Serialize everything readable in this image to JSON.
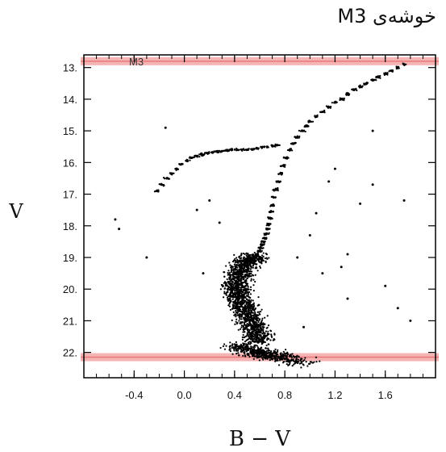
{
  "chart_data": {
    "type": "scatter",
    "title": "خوشه‌ی M3",
    "cluster_label": "M3",
    "xlabel": "B − V",
    "ylabel": "V",
    "xlim": [
      -0.8,
      2.0
    ],
    "ylim": [
      22.8,
      12.6
    ],
    "y_inverted": true,
    "grid": false,
    "x_ticks": [
      -0.4,
      0.0,
      0.4,
      0.8,
      1.2,
      1.6
    ],
    "x_tick_labels": [
      "-0.4",
      "0.0",
      "0.4",
      "0.8",
      "1.2",
      "1.6"
    ],
    "y_ticks": [
      13,
      14,
      15,
      16,
      17,
      18,
      19,
      20,
      21,
      22
    ],
    "y_tick_labels": [
      "13.",
      "14.",
      "15.",
      "16.",
      "17.",
      "18.",
      "19.",
      "20.",
      "21.",
      "22."
    ],
    "highlight_bands": [
      {
        "v": 12.8,
        "color": "#f3a6a6"
      },
      {
        "v": 22.15,
        "color": "#f3a6a6"
      }
    ],
    "point_color": "#000000",
    "series": [
      {
        "sequence": "red-giant-branch",
        "x": [
          1.75,
          1.7,
          1.65,
          1.6,
          1.55,
          1.5,
          1.45,
          1.4,
          1.35,
          1.3,
          1.25,
          1.2,
          1.15,
          1.1,
          1.05,
          1.0,
          0.97,
          0.94,
          0.9,
          0.87,
          0.84,
          0.81,
          0.79,
          0.77,
          0.75,
          0.73,
          0.71,
          0.7,
          0.69,
          0.68,
          0.67,
          0.66,
          0.65,
          0.64,
          0.63,
          0.62,
          0.61,
          0.6,
          0.58,
          0.56
        ],
        "y": [
          12.9,
          13.0,
          13.1,
          13.2,
          13.3,
          13.4,
          13.5,
          13.6,
          13.7,
          13.85,
          14.0,
          14.1,
          14.25,
          14.4,
          14.55,
          14.7,
          14.85,
          15.0,
          15.2,
          15.4,
          15.6,
          15.85,
          16.1,
          16.35,
          16.6,
          16.85,
          17.1,
          17.35,
          17.55,
          17.75,
          17.95,
          18.1,
          18.25,
          18.4,
          18.5,
          18.6,
          18.7,
          18.8,
          18.9,
          19.0
        ]
      },
      {
        "sequence": "horizontal-branch",
        "x": [
          -0.22,
          -0.18,
          -0.14,
          -0.1,
          -0.06,
          -0.02,
          0.02,
          0.06,
          0.1,
          0.14,
          0.18,
          0.22,
          0.26,
          0.3,
          0.34,
          0.38,
          0.42,
          0.46,
          0.5,
          0.54,
          0.58,
          0.62,
          0.66,
          0.7,
          0.74
        ],
        "y": [
          16.9,
          16.7,
          16.5,
          16.35,
          16.2,
          16.05,
          15.95,
          15.85,
          15.8,
          15.75,
          15.7,
          15.68,
          15.66,
          15.64,
          15.62,
          15.6,
          15.6,
          15.6,
          15.6,
          15.58,
          15.55,
          15.52,
          15.5,
          15.48,
          15.45
        ]
      },
      {
        "sequence": "subgiant-turnoff",
        "x": [
          0.56,
          0.52,
          0.48,
          0.45,
          0.43,
          0.42,
          0.42,
          0.43,
          0.45,
          0.48,
          0.5,
          0.52,
          0.55,
          0.58,
          0.6
        ],
        "y": [
          19.0,
          19.1,
          19.25,
          19.4,
          19.6,
          19.8,
          20.0,
          20.2,
          20.4,
          20.6,
          20.8,
          21.0,
          21.2,
          21.4,
          21.6
        ]
      },
      {
        "sequence": "main-sequence-bottom",
        "x": [
          0.45,
          0.5,
          0.55,
          0.6,
          0.65,
          0.7,
          0.75,
          0.8,
          0.9
        ],
        "y": [
          21.8,
          21.9,
          21.95,
          22.0,
          22.05,
          22.1,
          22.15,
          22.2,
          22.3
        ]
      },
      {
        "sequence": "field-stars",
        "x": [
          -0.55,
          -0.52,
          -0.3,
          -0.15,
          0.1,
          0.15,
          0.2,
          0.28,
          0.9,
          1.0,
          1.1,
          1.2,
          1.3,
          1.4,
          1.5,
          1.6,
          1.7,
          1.75,
          1.8,
          1.5,
          1.3,
          1.05,
          0.95,
          1.15,
          1.25
        ],
        "y": [
          17.8,
          18.1,
          19.0,
          14.9,
          17.5,
          19.5,
          17.2,
          17.9,
          19.0,
          18.3,
          19.5,
          16.2,
          18.9,
          17.3,
          16.7,
          19.9,
          20.6,
          17.2,
          21.0,
          15.0,
          20.3,
          17.6,
          21.2,
          16.6,
          19.3
        ]
      }
    ]
  }
}
